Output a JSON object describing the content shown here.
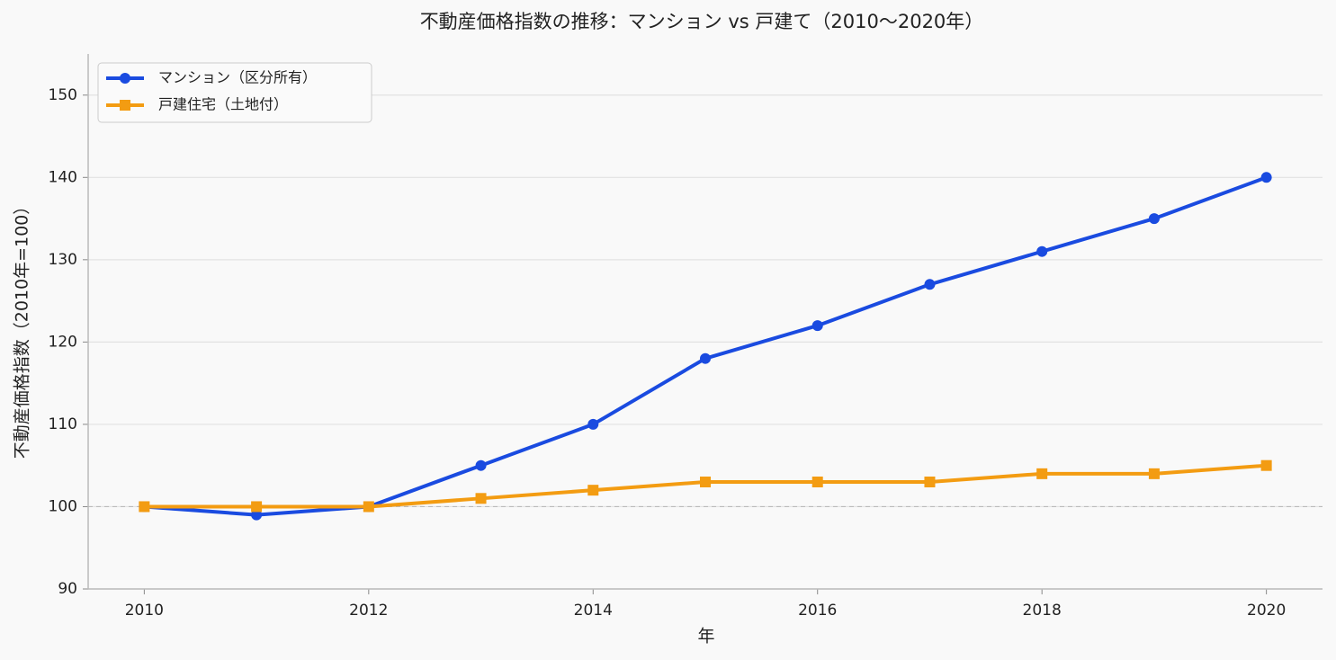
{
  "chart_data": {
    "type": "line",
    "title": "不動産価格指数の推移：マンション vs 戸建て（2010〜2020年）",
    "xlabel": "年",
    "ylabel": "不動産価格指数（2010年=100）",
    "x": [
      2010,
      2011,
      2012,
      2013,
      2014,
      2015,
      2016,
      2017,
      2018,
      2019,
      2020
    ],
    "series": [
      {
        "name": "マンション（区分所有）",
        "color": "#1a4be0",
        "marker": "circle",
        "values": [
          100,
          99,
          100,
          105,
          110,
          118,
          122,
          127,
          131,
          135,
          140
        ]
      },
      {
        "name": "戸建住宅（土地付）",
        "color": "#f39c12",
        "marker": "square",
        "values": [
          100,
          100,
          100,
          101,
          102,
          103,
          103,
          103,
          104,
          104,
          105
        ]
      }
    ],
    "xlim": [
      2009.5,
      2020.5
    ],
    "xticks": [
      2010,
      2012,
      2014,
      2016,
      2018,
      2020
    ],
    "ylim": [
      90,
      155
    ],
    "yticks": [
      90,
      100,
      110,
      120,
      130,
      140,
      150
    ],
    "reference_line": 100,
    "grid": true,
    "legend": "upper left"
  }
}
